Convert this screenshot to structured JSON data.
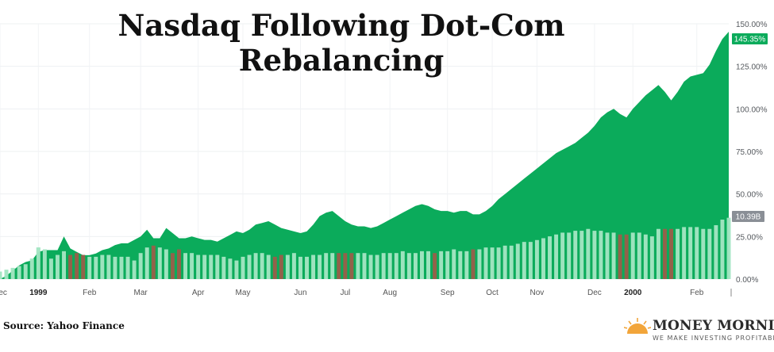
{
  "title": "Nasdaq Following Dot-Com Rebalancing",
  "source": "Source: Yahoo Finance",
  "brand": {
    "name": "MONEY MORNING",
    "tagline": "WE MAKE INVESTING PROFITABLE",
    "icon": "sun-icon"
  },
  "colors": {
    "area": "#0bab5b",
    "bar_up": "#a5e6c4",
    "bar_down": "#9a5e4a",
    "price_tag": "#0bab5b",
    "volume_tag": "#8a8f96"
  },
  "chart_data": {
    "type": "area",
    "y_axis": {
      "min": 0,
      "max": 150,
      "ticks": [
        "150.00%",
        "125.00%",
        "100.00%",
        "75.00%",
        "50.00%",
        "25.00%",
        "0.00%"
      ],
      "position": "right"
    },
    "x_ticks": [
      {
        "label": "Dec",
        "i": 0
      },
      {
        "label": "1999",
        "i": 6
      },
      {
        "label": "Feb",
        "i": 14
      },
      {
        "label": "Mar",
        "i": 22
      },
      {
        "label": "Apr",
        "i": 31
      },
      {
        "label": "May",
        "i": 38
      },
      {
        "label": "Jun",
        "i": 47
      },
      {
        "label": "Jul",
        "i": 54
      },
      {
        "label": "Aug",
        "i": 61
      },
      {
        "label": "Sep",
        "i": 70
      },
      {
        "label": "Oct",
        "i": 77
      },
      {
        "label": "Nov",
        "i": 84
      },
      {
        "label": "Dec",
        "i": 93
      },
      {
        "label": "2000",
        "i": 99
      },
      {
        "label": "Feb",
        "i": 109
      }
    ],
    "price_label": "145.35%",
    "volume_label": "10.39B",
    "series": [
      {
        "values": [
          0,
          2,
          5,
          8,
          10,
          11,
          16,
          17,
          17,
          17,
          25,
          18,
          16,
          14,
          14,
          15,
          17,
          18,
          20,
          21,
          21,
          23,
          25,
          29,
          24,
          24,
          30,
          27,
          24,
          24,
          25,
          24,
          23,
          23,
          22,
          24,
          26,
          28,
          27,
          29,
          32,
          33,
          34,
          32,
          30,
          29,
          28,
          27,
          28,
          32,
          37,
          39,
          40,
          37,
          34,
          32,
          31,
          31,
          30,
          31,
          33,
          35,
          37,
          39,
          41,
          43,
          44,
          43,
          41,
          40,
          40,
          39,
          40,
          40,
          38,
          38,
          40,
          43,
          47,
          50,
          53,
          56,
          59,
          62,
          65,
          68,
          71,
          74,
          76,
          78,
          80,
          83,
          86,
          90,
          95,
          98,
          100,
          97,
          95,
          100,
          104,
          108,
          111,
          114,
          110,
          105,
          110,
          116,
          119,
          120,
          121,
          126,
          134,
          141,
          145.35
        ]
      },
      {
        "bars": [
          4,
          5,
          6,
          7,
          8,
          11,
          17,
          16,
          11,
          13,
          15,
          13,
          14,
          13,
          12,
          12,
          13,
          13,
          12,
          12,
          12,
          10,
          14,
          17,
          18,
          17,
          16,
          14,
          16,
          14,
          14,
          13,
          13,
          13,
          13,
          12,
          11,
          10,
          12,
          13,
          14,
          14,
          13,
          12,
          13,
          13,
          14,
          12,
          12,
          13,
          13,
          14,
          14,
          14,
          14,
          14,
          14,
          14,
          13,
          13,
          14,
          14,
          14,
          15,
          14,
          14,
          15,
          15,
          14,
          15,
          15,
          16,
          15,
          15,
          16,
          16,
          17,
          17,
          17,
          18,
          18,
          19,
          20,
          20,
          21,
          22,
          23,
          24,
          25,
          25,
          26,
          26,
          27,
          26,
          26,
          25,
          25,
          24,
          24,
          25,
          25,
          24,
          23,
          27,
          27,
          27,
          27,
          28,
          28,
          28,
          27,
          27,
          29,
          32,
          33
        ]
      }
    ]
  }
}
